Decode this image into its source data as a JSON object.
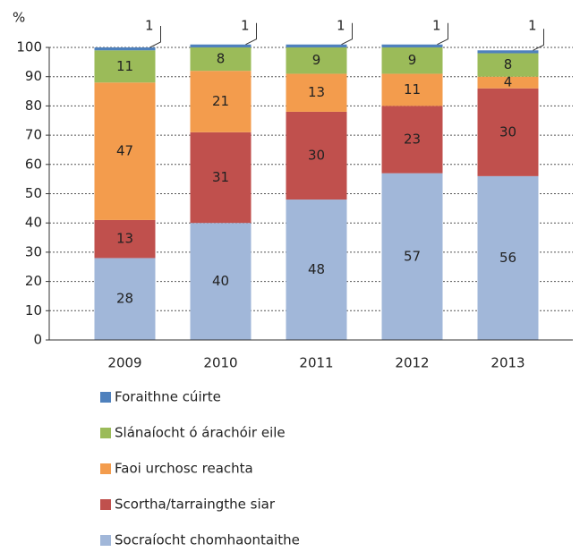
{
  "chart_data": {
    "type": "stacked_bar",
    "y_label": "%",
    "categories": [
      "2009",
      "2010",
      "2011",
      "2012",
      "2013"
    ],
    "series": [
      {
        "name": "Socraíocht chomhaontaithe",
        "color": "#a1b7d9",
        "values": [
          28,
          40,
          48,
          57,
          56
        ]
      },
      {
        "name": "Scortha/tarraingthe siar",
        "color": "#c0504d",
        "values": [
          13,
          31,
          30,
          23,
          30
        ]
      },
      {
        "name": "Faoi urchosc reachta",
        "color": "#f39c4d",
        "values": [
          47,
          21,
          13,
          11,
          4
        ]
      },
      {
        "name": "Slánaíocht ó árachóir eile",
        "color": "#9bbb59",
        "values": [
          11,
          8,
          9,
          9,
          8
        ]
      },
      {
        "name": "Foraithne cúirte",
        "color": "#4f81bd",
        "values": [
          1,
          1,
          1,
          1,
          1
        ]
      }
    ],
    "ylim": [
      0,
      100
    ],
    "yticks": [
      0,
      10,
      20,
      30,
      40,
      50,
      60,
      70,
      80,
      90,
      100
    ],
    "grid": true
  }
}
